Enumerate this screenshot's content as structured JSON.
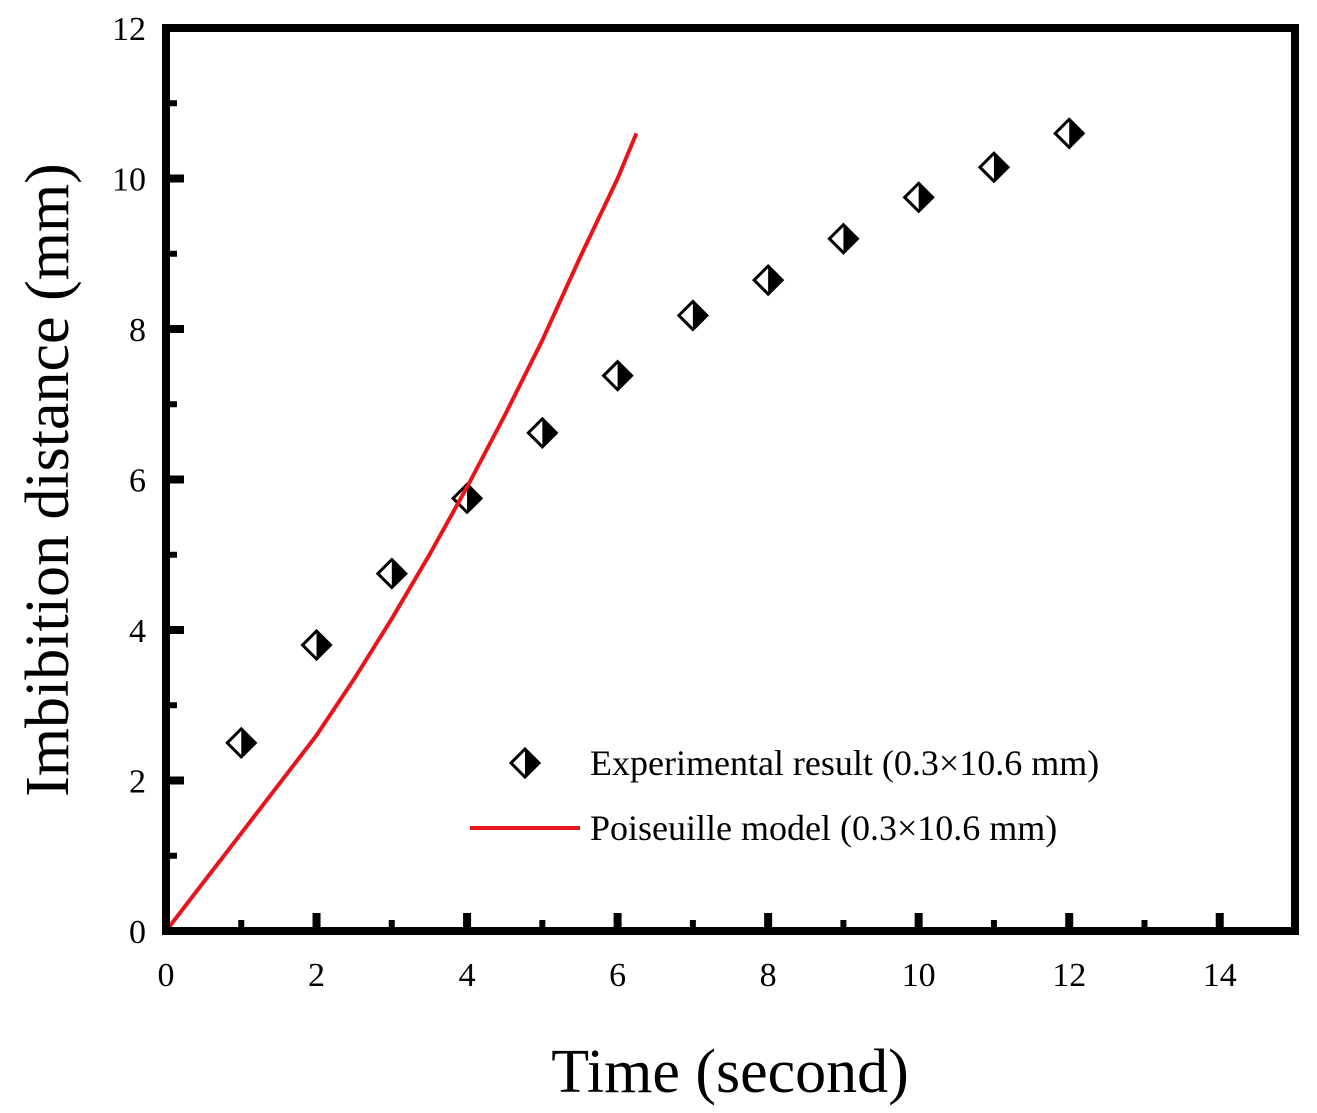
{
  "chart_data": {
    "type": "scatter",
    "title": "",
    "xlabel": "Time (second)",
    "ylabel": "Imbibition distance (mm)",
    "xlim": [
      0,
      15
    ],
    "ylim": [
      0,
      12
    ],
    "xticks": [
      0,
      2,
      4,
      6,
      8,
      10,
      12,
      14
    ],
    "xtick_labels": [
      "0",
      "2",
      "4",
      "6",
      "8",
      "10",
      "12",
      "14"
    ],
    "yticks": [
      0,
      2,
      4,
      6,
      8,
      10,
      12
    ],
    "ytick_labels": [
      "0",
      "2",
      "4",
      "6",
      "8",
      "10",
      "12"
    ],
    "legend_position": "lower-right",
    "series": [
      {
        "name": "Experimental result (0.3×10.6 mm)",
        "kind": "scatter",
        "marker": "half-filled-diamond",
        "color": "#000000",
        "x": [
          1,
          2,
          3,
          4,
          5,
          6,
          7,
          8,
          9,
          10,
          11,
          12
        ],
        "y": [
          2.5,
          3.8,
          4.75,
          5.75,
          6.62,
          7.38,
          8.18,
          8.65,
          9.2,
          9.75,
          10.15,
          10.6
        ]
      },
      {
        "name": "Poiseuille model (0.3×10.6 mm)",
        "kind": "line",
        "color": "#e8141b",
        "x": [
          0,
          0.5,
          1,
          1.5,
          2,
          2.5,
          3,
          3.5,
          4,
          4.5,
          5,
          5.5,
          6,
          6.25
        ],
        "y": [
          0,
          0.65,
          1.3,
          1.95,
          2.6,
          3.35,
          4.15,
          5.0,
          5.9,
          6.85,
          7.85,
          8.95,
          10.0,
          10.6
        ]
      }
    ]
  }
}
